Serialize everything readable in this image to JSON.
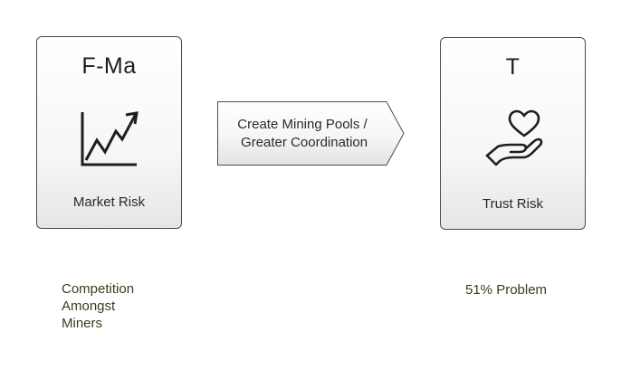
{
  "left_card": {
    "title": "F-Ma",
    "label": "Market Risk",
    "icon": "rising-chart-icon"
  },
  "right_card": {
    "title": "T",
    "label": "Trust Risk",
    "icon": "heart-in-hand-icon"
  },
  "arrow": {
    "lines": [
      "Create Mining Pools /",
      " Greater Coordination"
    ]
  },
  "captions": {
    "left_lines": [
      "Competition",
      "Amongst",
      "Miners"
    ],
    "right": "51% Problem"
  },
  "colors": {
    "border": "#4a4a4a",
    "text": "#2a2a2a",
    "caption": "#3c3c1c"
  }
}
